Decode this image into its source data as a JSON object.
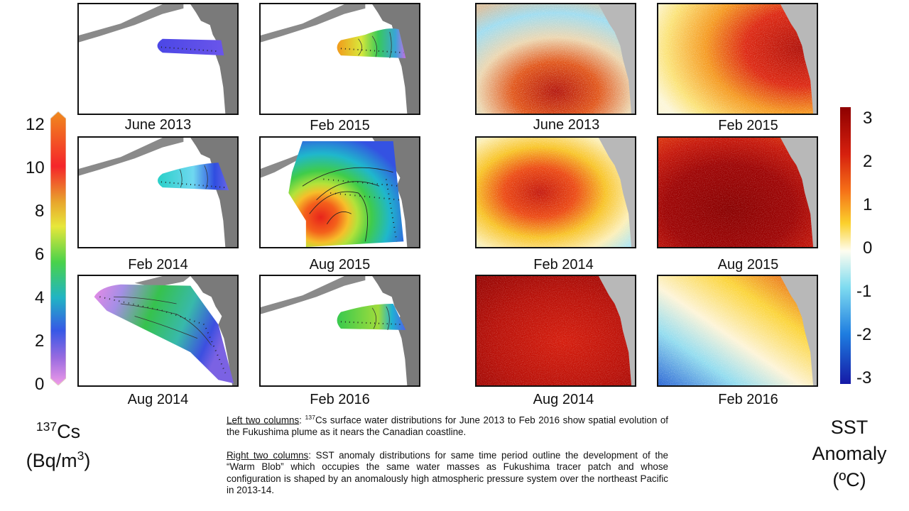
{
  "cs_panels": [
    {
      "date": "June 2013"
    },
    {
      "date": "Feb 2015"
    },
    {
      "date": "Feb 2014"
    },
    {
      "date": "Aug 2015"
    },
    {
      "date": "Aug 2014"
    },
    {
      "date": "Feb 2016"
    }
  ],
  "sst_panels": [
    {
      "date": "June 2013"
    },
    {
      "date": "Feb 2015"
    },
    {
      "date": "Feb 2014"
    },
    {
      "date": "Aug 2015"
    },
    {
      "date": "Aug 2014"
    },
    {
      "date": "Feb 2016"
    }
  ],
  "cs_colorbar": {
    "ticks": [
      "12",
      "10",
      "8",
      "6",
      "4",
      "2",
      "0"
    ],
    "unit_sup": "137",
    "unit_line1": "Cs",
    "unit_line2_a": "(Bq/m",
    "unit_line2_sup": "3",
    "unit_line2_b": ")",
    "colors": [
      "#f08a1e",
      "#f5252a",
      "#e8a52c",
      "#e7e73a",
      "#49d24a",
      "#21b4c4",
      "#3758e6",
      "#9a6be0",
      "#f19be8"
    ]
  },
  "sst_colorbar": {
    "ticks": [
      "3",
      "2",
      "1",
      "0",
      "-1",
      "-2",
      "-3"
    ],
    "unit_line1": "SST",
    "unit_line2": "Anomaly",
    "unit_line3": "(ºC)",
    "colors": [
      "#8e0000",
      "#d6200e",
      "#f56f17",
      "#fbd12c",
      "#fefdf0",
      "#7fdcf0",
      "#1e7de0",
      "#1519a6"
    ]
  },
  "caption": {
    "left_heading": "Left two columns",
    "left_sup": "137",
    "left_text": "Cs surface water distributions for June 2013 to Feb 2016 show spatial evolution of the Fukushima plume as it nears the Canadian coastline.",
    "right_heading": "Right two columns",
    "right_text": "SST anomaly distributions for same time period outline the development of the “Warm Blob” which occupies the same water masses as Fukushima tracer patch and whose configuration is shaped by an anomalously high atmospheric pressure system over the northeast Pacific in 2013-14."
  }
}
